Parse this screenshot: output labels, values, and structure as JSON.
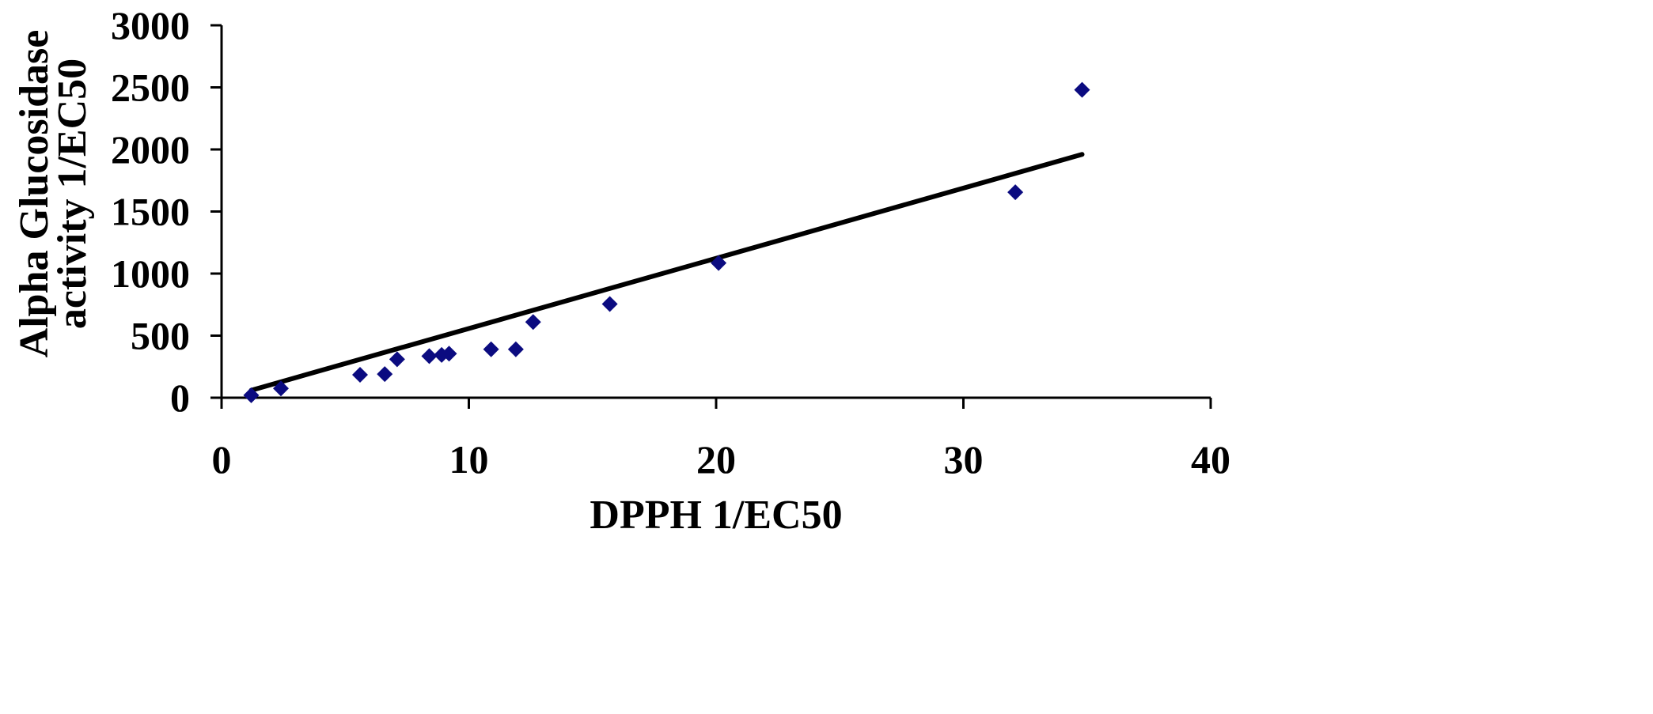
{
  "chart_data": {
    "type": "scatter",
    "xlabel": "DPPH 1/EC50",
    "ylabel_lines": [
      "Alpha Glucosidase",
      "activity 1/EC50"
    ],
    "xlim": [
      0,
      40
    ],
    "ylim": [
      0,
      3000
    ],
    "x_ticks": [
      0,
      10,
      20,
      30,
      40
    ],
    "y_ticks": [
      0,
      500,
      1000,
      1500,
      2000,
      2500,
      3000
    ],
    "x_tick_labels": [
      "0",
      "10",
      "20",
      "30",
      "40"
    ],
    "y_tick_labels": [
      "0",
      "500",
      "1000",
      "1500",
      "2000",
      "2500",
      "3000"
    ],
    "grid": false,
    "marker": "diamond",
    "colors": {
      "marker": "#0b0b80",
      "trendline": "#000000",
      "axis": "#000000"
    },
    "series": [
      {
        "x": [
          1.2,
          2.4,
          5.6,
          6.6,
          7.1,
          8.4,
          8.9,
          9.2,
          10.9,
          11.9,
          12.6,
          15.7,
          20.1,
          32.1,
          34.8
        ],
        "y": [
          20,
          75,
          185,
          190,
          310,
          335,
          345,
          355,
          390,
          390,
          610,
          755,
          1085,
          1655,
          2480
        ]
      }
    ],
    "trendline": {
      "type": "linear",
      "x": [
        1.2,
        34.8
      ],
      "y": [
        60,
        1960
      ]
    }
  }
}
